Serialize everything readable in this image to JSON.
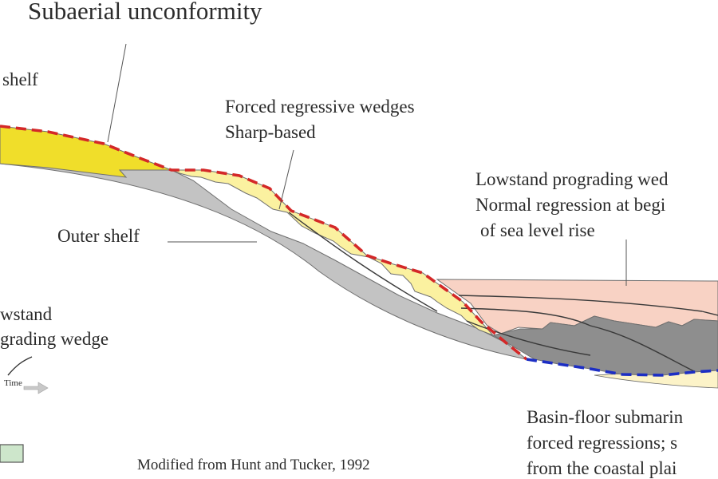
{
  "labels": {
    "subaerial_unconformity": "Subaerial unconformity",
    "shelf": "shelf",
    "forced_wedges_line1": "Forced regressive wedges",
    "forced_wedges_line2": "Sharp-based",
    "outer_shelf": "Outer shelf",
    "lowstand_prograding_line1": "Lowstand prograding wed",
    "lowstand_prograding_line2": "Normal regression at begi",
    "lowstand_prograding_line3": "of sea level rise",
    "left_lowstand_line1": "wstand",
    "left_lowstand_line2": "grading wedge",
    "time_axis": "Time",
    "basin_floor_line1": "Basin-floor submarin",
    "basin_floor_line2": "forced regressions; s",
    "basin_floor_line3": "from the coastal plai",
    "credit": "Modified from Hunt and Tucker, 1992"
  },
  "colors": {
    "upper_yellow": "#f0de2a",
    "forced_wedge_yellow": "#fbf1a0",
    "outer_shelf_gray": "#c3c3c3",
    "lowstand_wedge_pink": "#f8d2c4",
    "basin_dark_gray": "#8e8e8e",
    "basin_floor_cream": "#fcf3c8",
    "subaerial_unconformity_red": "#d42828",
    "basin_unconformity_blue": "#1c2ec4",
    "legend_green": "#cde6cb"
  }
}
